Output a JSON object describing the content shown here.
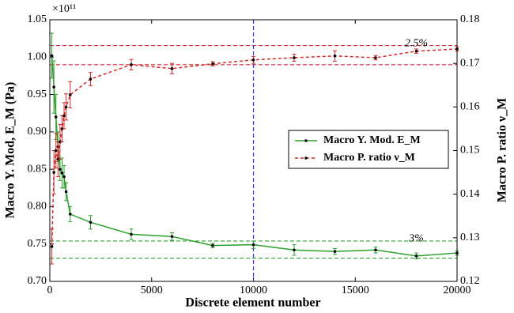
{
  "chart_data": {
    "type": "line",
    "x_label": "Discrete element number",
    "y_label": "Macro Y. Mod, E_M (Pa)",
    "y2_label": "Macro P. ratio ν_M",
    "y_multiplier": "×10¹¹",
    "x": [
      100,
      200,
      300,
      400,
      500,
      600,
      700,
      800,
      1000,
      2000,
      4000,
      6000,
      8000,
      10000,
      12000,
      14000,
      16000,
      18000,
      20000
    ],
    "series": [
      {
        "name": "Macro Y. Mod. E_M",
        "color": "#2ca02c",
        "dash": false,
        "axis": "y",
        "values": [
          1.002,
          0.96,
          0.92,
          0.88,
          0.85,
          0.845,
          0.84,
          0.82,
          0.79,
          0.779,
          0.763,
          0.76,
          0.748,
          0.749,
          0.742,
          0.74,
          0.742,
          0.734,
          0.738
        ],
        "errors": [
          0.03,
          0.035,
          0.03,
          0.02,
          0.015,
          0.02,
          0.015,
          0.012,
          0.01,
          0.009,
          0.007,
          0.005,
          0.003,
          0.005,
          0.007,
          0.004,
          0.004,
          0.004,
          0.003
        ]
      },
      {
        "name": "Macro P. ratio ν_M",
        "color": "#d62728",
        "dash": true,
        "axis": "y2",
        "values": [
          0.128,
          0.145,
          0.15,
          0.148,
          0.152,
          0.155,
          0.158,
          0.16,
          0.1628,
          0.1664,
          0.1697,
          0.1688,
          0.1699,
          0.1708,
          0.1713,
          0.1717,
          0.1713,
          0.1728,
          0.1733
        ],
        "errors": [
          0.004,
          0.005,
          0.004,
          0.004,
          0.004,
          0.003,
          0.003,
          0.003,
          0.003,
          0.0015,
          0.0012,
          0.0012,
          0.0005,
          0.0008,
          0.0008,
          0.0012,
          0.0005,
          0.0005,
          0.0005
        ]
      }
    ],
    "xlim": [
      0,
      20000
    ],
    "xticks": [
      0,
      5000,
      10000,
      15000,
      20000
    ],
    "ylim": [
      0.7,
      1.05
    ],
    "yticks": [
      {
        "value": 0.7,
        "label": "0.70"
      },
      {
        "value": 0.75,
        "label": "0.75"
      },
      {
        "value": 0.8,
        "label": "0.80"
      },
      {
        "value": 0.85,
        "label": "0.85"
      },
      {
        "value": 0.9,
        "label": "0.90"
      },
      {
        "value": 0.95,
        "label": "0.95"
      },
      {
        "value": 1.0,
        "label": "1.00"
      },
      {
        "value": 1.05,
        "label": "1.05"
      }
    ],
    "y2lim": [
      0.12,
      0.18
    ],
    "y2ticks": [
      {
        "value": 0.12,
        "label": "0.12"
      },
      {
        "value": 0.13,
        "label": "0.13"
      },
      {
        "value": 0.14,
        "label": "0.14"
      },
      {
        "value": 0.15,
        "label": "0.15"
      },
      {
        "value": 0.16,
        "label": "0.16"
      },
      {
        "value": 0.17,
        "label": "0.17"
      },
      0.18
    ],
    "hlines": [
      {
        "value": 0.1741,
        "axis": "y2",
        "color": "#d62728"
      },
      {
        "value": 0.1697,
        "axis": "y2",
        "color": "#d62728"
      },
      {
        "value": 0.754,
        "axis": "y",
        "color": "#2ca02c"
      },
      {
        "value": 0.731,
        "axis": "y",
        "color": "#2ca02c"
      }
    ],
    "vline": {
      "value": 10000,
      "color": "#3333dd"
    },
    "annotations": [
      {
        "text": "2.5%",
        "x": 18000,
        "y": 0.1745,
        "axis": "y2"
      },
      {
        "text": "3%",
        "x": 18000,
        "y": 0.757,
        "axis": "y"
      }
    ],
    "legend": "center right"
  }
}
